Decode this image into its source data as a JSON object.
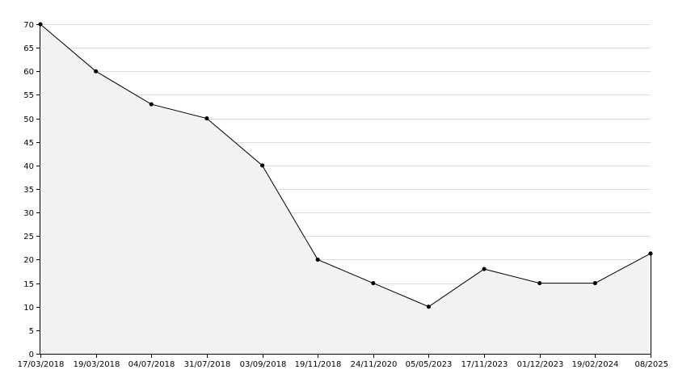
{
  "chart_data": {
    "type": "area",
    "categories": [
      "17/03/2018",
      "19/03/2018",
      "04/07/2018",
      "31/07/2018",
      "03/09/2018",
      "19/11/2018",
      "24/11/2020",
      "05/05/2023",
      "17/11/2023",
      "01/12/2023",
      "19/02/2024",
      "08/2025"
    ],
    "values": [
      70,
      60,
      53,
      50,
      40,
      20,
      15,
      10,
      18,
      15,
      15,
      21.3
    ],
    "ylim": [
      0,
      70
    ],
    "yticks": [
      "0",
      "5",
      "10",
      "15",
      "20",
      "25",
      "30",
      "35",
      "40",
      "45",
      "50",
      "55",
      "60",
      "65",
      "70"
    ],
    "grid": true,
    "colors": {
      "line": "#000000",
      "fill": "#f2f2f2",
      "grid": "#dcdcdc"
    },
    "title": "",
    "xlabel": "",
    "ylabel": ""
  }
}
